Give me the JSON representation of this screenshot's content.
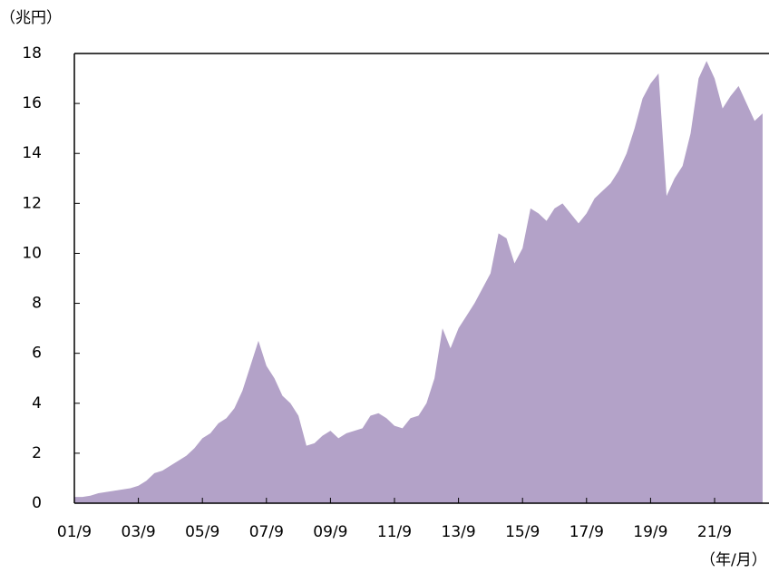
{
  "chart_data": {
    "type": "area",
    "y_label": "（兆円）",
    "x_label": "（年/月）",
    "categories": [
      "01/9",
      null,
      null,
      null,
      null,
      null,
      null,
      null,
      "03/9",
      null,
      null,
      null,
      null,
      null,
      null,
      null,
      "05/9",
      null,
      null,
      null,
      null,
      null,
      null,
      null,
      "07/9",
      null,
      null,
      null,
      null,
      null,
      null,
      null,
      "09/9",
      null,
      null,
      null,
      null,
      null,
      null,
      null,
      "11/9",
      null,
      null,
      null,
      null,
      null,
      null,
      null,
      "13/9",
      null,
      null,
      null,
      null,
      null,
      null,
      null,
      "15/9",
      null,
      null,
      null,
      null,
      null,
      null,
      null,
      "17/9",
      null,
      null,
      null,
      null,
      null,
      null,
      null,
      "19/9",
      null,
      null,
      null,
      null,
      null,
      null,
      null,
      "21/9",
      null,
      null,
      null,
      null,
      null,
      null
    ],
    "values": [
      0.25,
      0.25,
      0.3,
      0.4,
      0.45,
      0.5,
      0.55,
      0.6,
      0.7,
      0.9,
      1.2,
      1.3,
      1.5,
      1.7,
      1.9,
      2.2,
      2.6,
      2.8,
      3.2,
      3.4,
      3.8,
      4.5,
      5.5,
      6.5,
      5.5,
      5.0,
      4.3,
      4.0,
      3.5,
      2.3,
      2.4,
      2.7,
      2.9,
      2.6,
      2.8,
      2.9,
      3.0,
      3.5,
      3.6,
      3.4,
      3.1,
      3.0,
      3.4,
      3.5,
      4.0,
      5.0,
      7.0,
      6.2,
      7.0,
      7.5,
      8.0,
      8.6,
      9.2,
      10.8,
      10.6,
      9.6,
      10.2,
      11.8,
      11.6,
      11.3,
      11.8,
      12.0,
      11.6,
      11.2,
      11.6,
      12.2,
      12.5,
      12.8,
      13.3,
      14.0,
      15.0,
      16.2,
      16.8,
      17.2,
      12.3,
      13.0,
      13.5,
      14.8,
      17.0,
      17.7,
      17.0,
      15.8,
      16.3,
      16.7,
      16.0,
      15.3,
      15.6
    ],
    "color": "#b3a2c8",
    "ylim": [
      0,
      18
    ],
    "yticks": [
      0,
      2,
      4,
      6,
      8,
      10,
      12,
      14,
      16,
      18
    ]
  }
}
